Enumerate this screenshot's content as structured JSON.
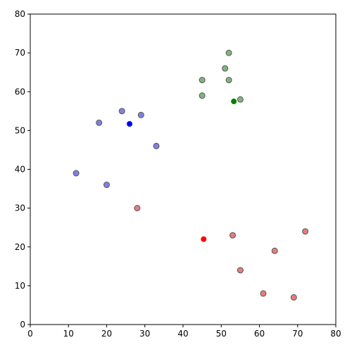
{
  "chart_data": {
    "type": "scatter",
    "title": "",
    "xlabel": "",
    "ylabel": "",
    "xlim": [
      0,
      80
    ],
    "ylim": [
      0,
      80
    ],
    "xticks": [
      0,
      10,
      20,
      30,
      40,
      50,
      60,
      70,
      80
    ],
    "yticks": [
      0,
      10,
      20,
      30,
      40,
      50,
      60,
      70,
      80
    ],
    "grid": false,
    "legend": false,
    "series": [
      {
        "role": "cluster-points",
        "color": "#6b6bdc",
        "x": [
          12,
          20,
          18,
          24,
          29,
          33
        ],
        "y": [
          39,
          36,
          52,
          55,
          54,
          46
        ]
      },
      {
        "role": "cluster-points",
        "color": "#e06666",
        "x": [
          28,
          53,
          55,
          61,
          64,
          69,
          72
        ],
        "y": [
          30,
          23,
          14,
          8,
          19,
          7,
          24
        ]
      },
      {
        "role": "cluster-points",
        "color": "#6aa86a",
        "x": [
          45,
          45,
          51,
          52,
          52,
          55
        ],
        "y": [
          63,
          59,
          66,
          70,
          63,
          58
        ]
      },
      {
        "role": "centroid",
        "color": "#0000ff",
        "x": [
          26
        ],
        "y": [
          51.7
        ]
      },
      {
        "role": "centroid",
        "color": "#ff0000",
        "x": [
          45.4
        ],
        "y": [
          22
        ]
      },
      {
        "role": "centroid",
        "color": "#008000",
        "x": [
          53.3
        ],
        "y": [
          57.5
        ]
      }
    ]
  }
}
